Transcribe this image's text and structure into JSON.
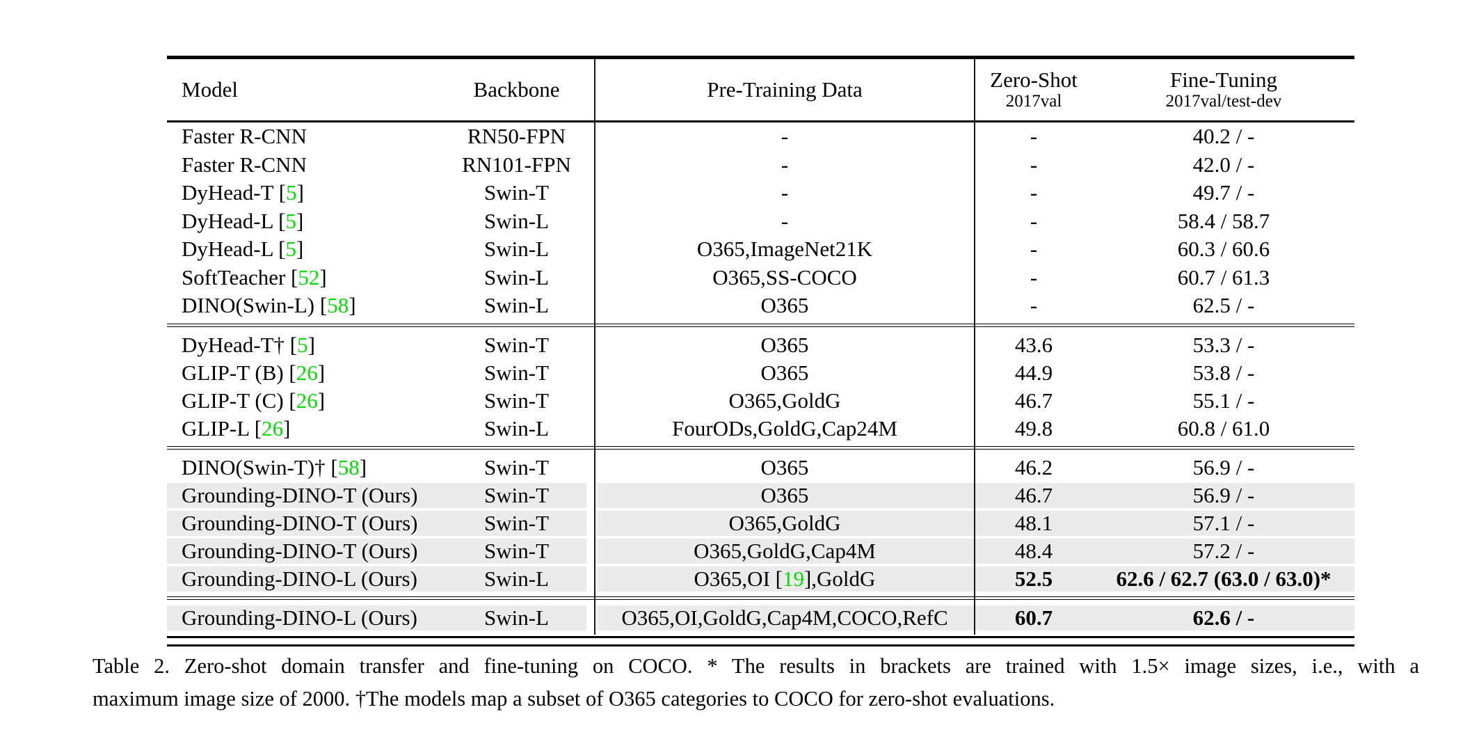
{
  "colors": {
    "citation_green": "#00de00",
    "row_highlight": "#ebebeb",
    "rule_black": "#000000"
  },
  "table": {
    "columns": [
      {
        "id": "model",
        "label": "Model"
      },
      {
        "id": "backbone",
        "label": "Backbone"
      },
      {
        "id": "pretrain",
        "label": "Pre-Training Data"
      },
      {
        "id": "zeroshot",
        "label": "Zero-Shot",
        "sublabel": "2017val"
      },
      {
        "id": "finetune",
        "label": "Fine-Tuning",
        "sublabel": "2017val/test-dev"
      }
    ],
    "sections": [
      {
        "rows": [
          {
            "model": [
              {
                "t": "Faster R-CNN"
              }
            ],
            "backbone": "RN50-FPN",
            "pretrain": [
              {
                "t": "-"
              }
            ],
            "zeroshot": "-",
            "finetune": "40.2 / -",
            "highlight": false,
            "bold": false
          },
          {
            "model": [
              {
                "t": "Faster R-CNN"
              }
            ],
            "backbone": "RN101-FPN",
            "pretrain": [
              {
                "t": "-"
              }
            ],
            "zeroshot": "-",
            "finetune": "42.0 / -",
            "highlight": false,
            "bold": false
          },
          {
            "model": [
              {
                "t": "DyHead-T ["
              },
              {
                "t": "5",
                "green": true
              },
              {
                "t": "]"
              }
            ],
            "backbone": "Swin-T",
            "pretrain": [
              {
                "t": "-"
              }
            ],
            "zeroshot": "-",
            "finetune": "49.7 / -",
            "highlight": false,
            "bold": false
          },
          {
            "model": [
              {
                "t": "DyHead-L ["
              },
              {
                "t": "5",
                "green": true
              },
              {
                "t": "]"
              }
            ],
            "backbone": "Swin-L",
            "pretrain": [
              {
                "t": "-"
              }
            ],
            "zeroshot": "-",
            "finetune": "58.4 / 58.7",
            "highlight": false,
            "bold": false
          },
          {
            "model": [
              {
                "t": "DyHead-L ["
              },
              {
                "t": "5",
                "green": true
              },
              {
                "t": "]"
              }
            ],
            "backbone": "Swin-L",
            "pretrain": [
              {
                "t": "O365,ImageNet21K"
              }
            ],
            "zeroshot": "-",
            "finetune": "60.3 / 60.6",
            "highlight": false,
            "bold": false
          },
          {
            "model": [
              {
                "t": "SoftTeacher ["
              },
              {
                "t": "52",
                "green": true
              },
              {
                "t": "]"
              }
            ],
            "backbone": "Swin-L",
            "pretrain": [
              {
                "t": "O365,SS-COCO"
              }
            ],
            "zeroshot": "-",
            "finetune": "60.7 / 61.3",
            "highlight": false,
            "bold": false
          },
          {
            "model": [
              {
                "t": "DINO(Swin-L) ["
              },
              {
                "t": "58",
                "green": true
              },
              {
                "t": "]"
              }
            ],
            "backbone": "Swin-L",
            "pretrain": [
              {
                "t": "O365"
              }
            ],
            "zeroshot": "-",
            "finetune": "62.5 / -",
            "highlight": false,
            "bold": false
          }
        ]
      },
      {
        "rows": [
          {
            "model": [
              {
                "t": "DyHead-T† ["
              },
              {
                "t": "5",
                "green": true
              },
              {
                "t": "]"
              }
            ],
            "backbone": "Swin-T",
            "pretrain": [
              {
                "t": "O365"
              }
            ],
            "zeroshot": "43.6",
            "finetune": "53.3 / -",
            "highlight": false,
            "bold": false
          },
          {
            "model": [
              {
                "t": "GLIP-T (B) ["
              },
              {
                "t": "26",
                "green": true
              },
              {
                "t": "]"
              }
            ],
            "backbone": "Swin-T",
            "pretrain": [
              {
                "t": "O365"
              }
            ],
            "zeroshot": "44.9",
            "finetune": "53.8 / -",
            "highlight": false,
            "bold": false
          },
          {
            "model": [
              {
                "t": "GLIP-T (C) ["
              },
              {
                "t": "26",
                "green": true
              },
              {
                "t": "]"
              }
            ],
            "backbone": "Swin-T",
            "pretrain": [
              {
                "t": "O365,GoldG"
              }
            ],
            "zeroshot": "46.7",
            "finetune": "55.1 / -",
            "highlight": false,
            "bold": false
          },
          {
            "model": [
              {
                "t": "GLIP-L ["
              },
              {
                "t": "26",
                "green": true
              },
              {
                "t": "]"
              }
            ],
            "backbone": "Swin-L",
            "pretrain": [
              {
                "t": "FourODs,GoldG,Cap24M"
              }
            ],
            "zeroshot": "49.8",
            "finetune": "60.8 / 61.0",
            "highlight": false,
            "bold": false
          }
        ]
      },
      {
        "rows": [
          {
            "model": [
              {
                "t": "DINO(Swin-T)† ["
              },
              {
                "t": "58",
                "green": true
              },
              {
                "t": "]"
              }
            ],
            "backbone": "Swin-T",
            "pretrain": [
              {
                "t": "O365"
              }
            ],
            "zeroshot": "46.2",
            "finetune": "56.9 / -",
            "highlight": false,
            "bold": false
          },
          {
            "model": [
              {
                "t": "Grounding-DINO-T (Ours)"
              }
            ],
            "backbone": "Swin-T",
            "pretrain": [
              {
                "t": "O365"
              }
            ],
            "zeroshot": "46.7",
            "finetune": "56.9 / -",
            "highlight": true,
            "bold": false
          },
          {
            "model": [
              {
                "t": "Grounding-DINO-T (Ours)"
              }
            ],
            "backbone": "Swin-T",
            "pretrain": [
              {
                "t": "O365,GoldG"
              }
            ],
            "zeroshot": "48.1",
            "finetune": "57.1 / -",
            "highlight": true,
            "bold": false
          },
          {
            "model": [
              {
                "t": "Grounding-DINO-T (Ours)"
              }
            ],
            "backbone": "Swin-T",
            "pretrain": [
              {
                "t": "O365,GoldG,Cap4M"
              }
            ],
            "zeroshot": "48.4",
            "finetune": "57.2 / -",
            "highlight": true,
            "bold": false
          },
          {
            "model": [
              {
                "t": "Grounding-DINO-L (Ours)"
              }
            ],
            "backbone": "Swin-L",
            "pretrain": [
              {
                "t": "O365,OI ["
              },
              {
                "t": "19",
                "green": true
              },
              {
                "t": "],GoldG"
              }
            ],
            "zeroshot": "52.5",
            "finetune": "62.6 / 62.7 (63.0 / 63.0)*",
            "highlight": true,
            "bold": true
          }
        ]
      },
      {
        "rows": [
          {
            "model": [
              {
                "t": "Grounding-DINO-L (Ours)"
              }
            ],
            "backbone": "Swin-L",
            "pretrain": [
              {
                "t": "O365,OI,GoldG,Cap4M,COCO,RefC"
              }
            ],
            "zeroshot": "60.7",
            "finetune": "62.6 / -",
            "highlight": true,
            "bold": true
          }
        ]
      }
    ]
  },
  "caption": {
    "line1": "Table 2.  Zero-shot domain transfer and fine-tuning on COCO. * The results in brackets are trained with 1.5× image sizes, i.e., with a",
    "line2": "maximum image size of 2000. †The models map a subset of O365 categories to COCO for zero-shot evaluations."
  }
}
